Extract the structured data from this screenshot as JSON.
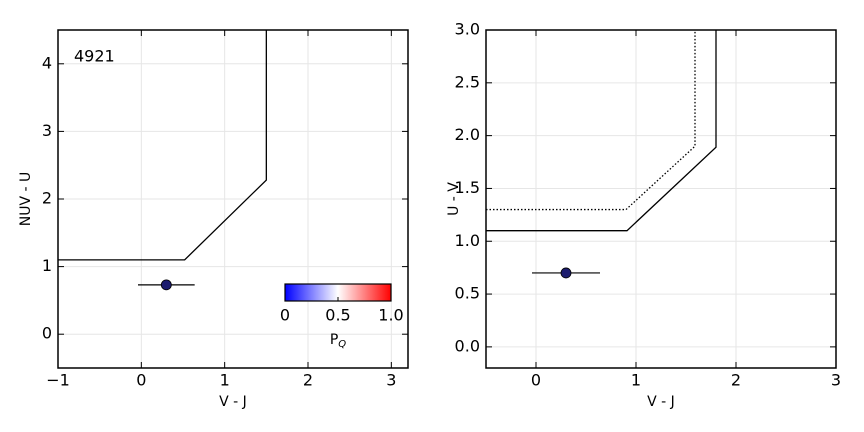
{
  "chart_data": [
    {
      "type": "scatter",
      "annotation": "4921",
      "xlabel": "V - J",
      "ylabel": "NUV - U",
      "xlim": [
        -1,
        3.2
      ],
      "ylim": [
        -0.5,
        4.5
      ],
      "xticks": [
        {
          "value": -1,
          "label": "−1"
        },
        0,
        1,
        2,
        3
      ],
      "yticks": [
        0,
        1,
        2,
        3,
        4
      ],
      "grid": true,
      "lines": [
        {
          "x": [
            -1,
            0.52,
            1.5,
            1.5
          ],
          "y": [
            1.1,
            1.1,
            2.28,
            4.5
          ],
          "style": "solid",
          "color": "#000000"
        }
      ],
      "points": {
        "x": [
          0.3
        ],
        "y": [
          0.73
        ],
        "xerr": [
          0.34
        ],
        "yerr": [
          0.02
        ],
        "color": "#1c1c6e"
      },
      "colorbar": {
        "label": "P",
        "label_sub": "Q",
        "lim": [
          0,
          1
        ],
        "ticks": [
          0,
          0.5,
          {
            "value": 1,
            "label": "1.0"
          }
        ],
        "colors": [
          "#0000ff",
          "#ffffff",
          "#ff0000"
        ]
      }
    },
    {
      "type": "scatter",
      "xlabel": "V - J",
      "ylabel": "U - V",
      "xlim": [
        -0.5,
        3
      ],
      "ylim": [
        -0.2,
        3.0
      ],
      "xticks": [
        0,
        1,
        2,
        3
      ],
      "yticks": [
        {
          "value": 0,
          "label": "0.0"
        },
        0.5,
        {
          "value": 1,
          "label": "1.0"
        },
        1.5,
        {
          "value": 2,
          "label": "2.0"
        },
        2.5,
        {
          "value": 3,
          "label": "3.0"
        }
      ],
      "grid": true,
      "lines": [
        {
          "x": [
            -0.5,
            0.91,
            1.8,
            1.8
          ],
          "y": [
            1.1,
            1.1,
            1.89,
            3.0
          ],
          "style": "solid",
          "color": "#000000"
        },
        {
          "x": [
            -0.5,
            0.9,
            1.59,
            1.59
          ],
          "y": [
            1.3,
            1.3,
            1.9,
            3.0
          ],
          "style": "dotted",
          "color": "#000000"
        }
      ],
      "points": {
        "x": [
          0.3
        ],
        "y": [
          0.7
        ],
        "xerr": [
          0.34
        ],
        "yerr": [
          0.03
        ],
        "color": "#1c1c6e"
      }
    }
  ]
}
